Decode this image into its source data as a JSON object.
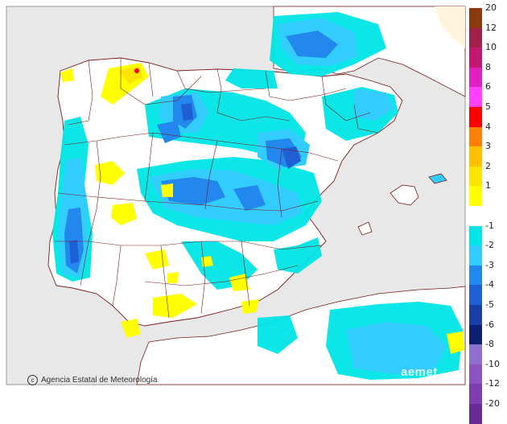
{
  "credit": {
    "text": "Agencia Estatal de Meteorología",
    "logo_icon": "copyright-icon"
  },
  "watermark": {
    "text": "aemet"
  },
  "legend": {
    "items": [
      {
        "label": "20",
        "color": "#8b3a0e"
      },
      {
        "label": "12",
        "color": "#a0204a"
      },
      {
        "label": "10",
        "color": "#c21870"
      },
      {
        "label": "8",
        "color": "#e020c0"
      },
      {
        "label": "6",
        "color": "#ff40ff"
      },
      {
        "label": "5",
        "color": "#ff0000"
      },
      {
        "label": "4",
        "color": "#ff7f00"
      },
      {
        "label": "3",
        "color": "#ffc000"
      },
      {
        "label": "2",
        "color": "#ffe400"
      },
      {
        "label": "1",
        "color": "#ffff00"
      },
      {
        "label": "",
        "color": "#ffffff"
      },
      {
        "label": "-1",
        "color": "#00e5e5"
      },
      {
        "label": "-2",
        "color": "#33ccff"
      },
      {
        "label": "-3",
        "color": "#2288ee"
      },
      {
        "label": "-4",
        "color": "#1f5fd6"
      },
      {
        "label": "-5",
        "color": "#1a3ea8"
      },
      {
        "label": "-6",
        "color": "#0d1f70"
      },
      {
        "label": "-8",
        "color": "#8d6fd0"
      },
      {
        "label": "-10",
        "color": "#8a55c0"
      },
      {
        "label": "-12",
        "color": "#7d3fb0"
      },
      {
        "label": "-20",
        "color": "#6a2a98"
      }
    ]
  },
  "colors": {
    "sea": "#e8e8e8",
    "land": "#ffffff",
    "border": "#7a1a1a"
  }
}
